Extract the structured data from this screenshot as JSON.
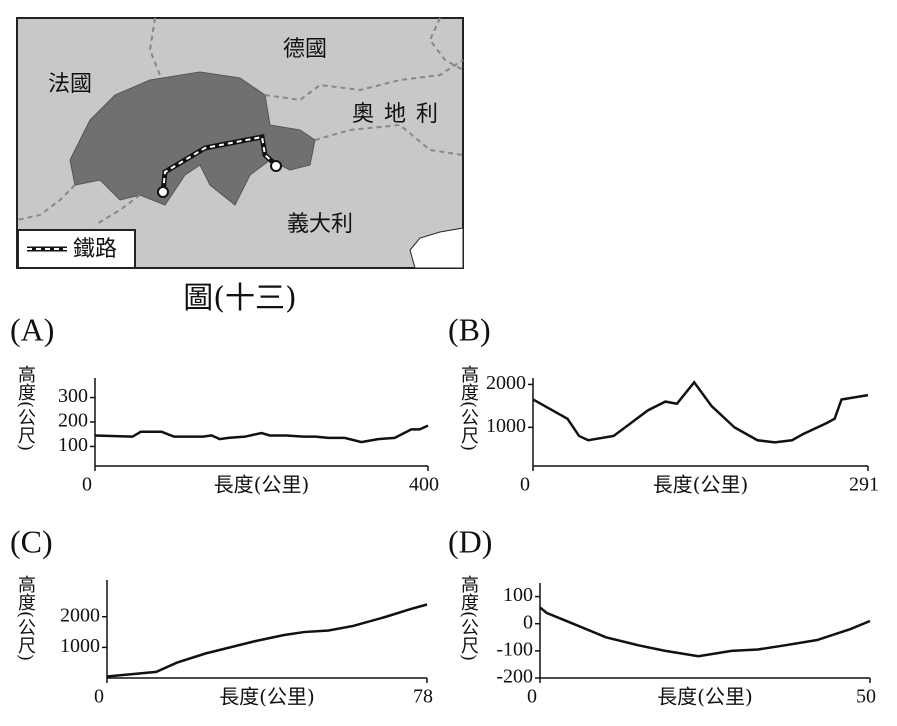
{
  "map": {
    "labels": [
      "法國",
      "德國",
      "奧地利",
      "義大利"
    ],
    "legend": "鐵路",
    "caption": "圖(十三)"
  },
  "chart_data": [
    {
      "type": "line",
      "title": "(A)",
      "y_label": "高度(公尺)",
      "x_label": "長度(公里)",
      "x": [
        0,
        45,
        55,
        80,
        95,
        130,
        140,
        150,
        160,
        180,
        200,
        210,
        230,
        250,
        265,
        280,
        300,
        320,
        340,
        360,
        380,
        390,
        400
      ],
      "values": [
        145,
        140,
        160,
        160,
        140,
        140,
        145,
        130,
        135,
        140,
        155,
        145,
        145,
        140,
        140,
        135,
        135,
        118,
        130,
        135,
        170,
        170,
        185
      ],
      "xlim": [
        0,
        400
      ],
      "xticks": [
        0,
        400
      ],
      "ylim": [
        20,
        380
      ],
      "yticks": [
        100,
        200,
        300
      ],
      "color": "#111111"
    },
    {
      "type": "line",
      "title": "(B)",
      "y_label": "高度(公尺)",
      "x_label": "長度(公里)",
      "x": [
        0,
        30,
        40,
        48,
        70,
        85,
        100,
        115,
        125,
        140,
        155,
        175,
        195,
        210,
        225,
        235,
        255,
        262,
        268,
        291
      ],
      "values": [
        1650,
        1200,
        800,
        700,
        800,
        1100,
        1400,
        1600,
        1550,
        2050,
        1500,
        1000,
        700,
        650,
        700,
        850,
        1100,
        1200,
        1650,
        1750
      ],
      "xlim": [
        0,
        291
      ],
      "xticks": [
        0,
        291
      ],
      "ylim": [
        100,
        2150
      ],
      "yticks": [
        1000,
        2000
      ],
      "color": "#111111"
    },
    {
      "type": "line",
      "title": "(C)",
      "y_label": "高度(公尺)",
      "x_label": "長度(公里)",
      "x": [
        0,
        12,
        17,
        24,
        30,
        36,
        43,
        48,
        54,
        60,
        68,
        74,
        78
      ],
      "values": [
        50,
        200,
        500,
        800,
        1000,
        1200,
        1400,
        1500,
        1550,
        1700,
        2000,
        2250,
        2400
      ],
      "xlim": [
        0,
        78
      ],
      "xticks": [
        0,
        78
      ],
      "ylim": [
        0,
        3200
      ],
      "yticks": [
        1000,
        2000
      ],
      "color": "#111111"
    },
    {
      "type": "line",
      "title": "(D)",
      "y_label": "高度(公尺)",
      "x_label": "長度(公里)",
      "x": [
        0,
        1,
        5,
        10,
        15,
        19,
        24,
        29,
        33,
        37,
        42,
        47,
        50
      ],
      "values": [
        60,
        40,
        0,
        -50,
        -80,
        -100,
        -120,
        -100,
        -95,
        -80,
        -60,
        -20,
        10
      ],
      "xlim": [
        0,
        50
      ],
      "xticks": [
        0,
        50
      ],
      "ylim": [
        -200,
        150
      ],
      "yticks": [
        100,
        0,
        -100,
        -200
      ],
      "color": "#111111"
    }
  ]
}
